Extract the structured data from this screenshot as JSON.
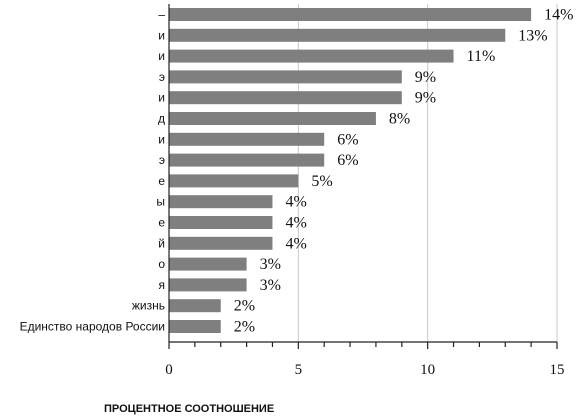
{
  "chart_data": {
    "type": "bar",
    "orientation": "horizontal",
    "categories": [
      "–",
      "и",
      "и",
      "э",
      "и",
      "д",
      "и",
      "э",
      "е",
      "ы",
      "е",
      "й",
      "о",
      "я",
      "жизнь",
      "Единство народов России"
    ],
    "values": [
      14,
      13,
      11,
      9,
      9,
      8,
      6,
      6,
      5,
      4,
      4,
      4,
      3,
      3,
      2,
      2
    ],
    "value_labels": [
      "14%",
      "13%",
      "11%",
      "9%",
      "9%",
      "8%",
      "6%",
      "6%",
      "5%",
      "4%",
      "4%",
      "4%",
      "3%",
      "3%",
      "2%",
      "2%"
    ],
    "xlabel": "ПРОЦЕНТНОЕ СООТНОШЕНИЕ",
    "xlim": [
      0,
      15
    ],
    "xticks": [
      0,
      5,
      10,
      15
    ],
    "grid": "vertical",
    "bar_color": "#7f7f7f",
    "grid_color": "#c8c8c8",
    "axis_color": "#222222"
  }
}
